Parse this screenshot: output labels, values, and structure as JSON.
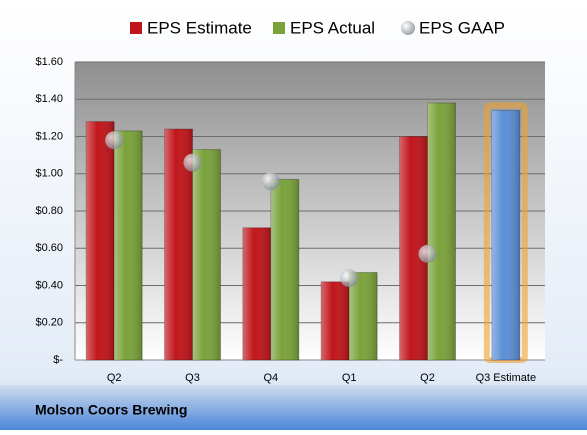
{
  "chart_data": {
    "type": "bar",
    "footer": "Molson Coors Brewing",
    "categories": [
      "Q2",
      "Q3",
      "Q4",
      "Q1",
      "Q2",
      "Q3 Estimate"
    ],
    "series": [
      {
        "name": "EPS Estimate",
        "type": "bar",
        "color": "#c0161b",
        "point_colors": [
          null,
          null,
          null,
          null,
          null,
          "#5b8fd6"
        ],
        "values": [
          1.28,
          1.24,
          0.71,
          0.42,
          1.2,
          1.34
        ]
      },
      {
        "name": "EPS Actual",
        "type": "bar",
        "color": "#7aa23a",
        "values": [
          1.23,
          1.13,
          0.97,
          0.47,
          1.38,
          null
        ]
      },
      {
        "name": "EPS GAAP",
        "type": "scatter",
        "color": "#a9b0b8",
        "values": [
          1.18,
          1.06,
          0.96,
          0.44,
          0.57,
          null
        ]
      }
    ],
    "ylim": [
      0,
      1.6
    ],
    "yticks": [
      {
        "value": 0,
        "label": "$-"
      },
      {
        "value": 0.2,
        "label": "$0.20"
      },
      {
        "value": 0.4,
        "label": "$0.40"
      },
      {
        "value": 0.6,
        "label": "$0.60"
      },
      {
        "value": 0.8,
        "label": "$0.80"
      },
      {
        "value": 1.0,
        "label": "$1.00"
      },
      {
        "value": 1.2,
        "label": "$1.20"
      },
      {
        "value": 1.4,
        "label": "$1.40"
      },
      {
        "value": 1.6,
        "label": "$1.60"
      }
    ],
    "grid": true
  }
}
